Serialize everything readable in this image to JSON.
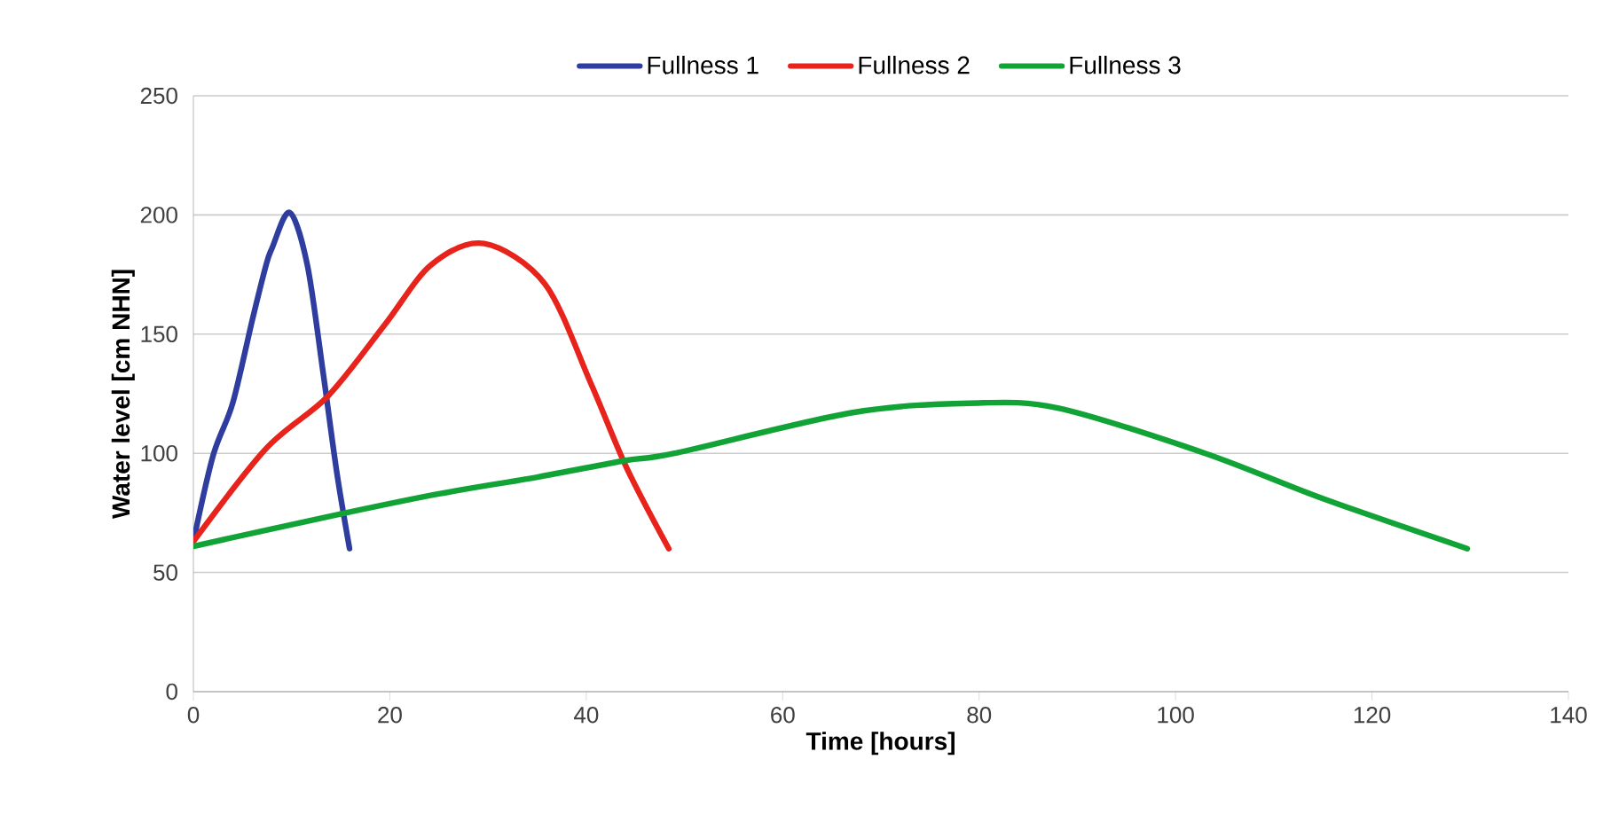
{
  "chart_data": {
    "type": "line",
    "xlabel": "Time [hours]",
    "ylabel": "Water level [cm NHN]",
    "xlim": [
      0,
      140
    ],
    "ylim": [
      0,
      250
    ],
    "xticks": [
      0,
      20,
      40,
      60,
      80,
      100,
      120,
      140
    ],
    "yticks": [
      0,
      50,
      100,
      150,
      200,
      250
    ],
    "grid": "y",
    "legend": "top",
    "marker": "none",
    "line_style": "solid",
    "series": [
      {
        "name": "Fullness 1",
        "color": "#2e3d9e",
        "x": [
          0,
          2,
          4,
          6,
          7.4,
          8,
          9.8,
          11.6,
          13.2,
          14.6,
          15.9
        ],
        "values": [
          63,
          99,
          121,
          156,
          179,
          186,
          201,
          179,
          134,
          92,
          60
        ]
      },
      {
        "name": "Fullness 2",
        "color": "#e8231c",
        "x": [
          0,
          7.4,
          13.7,
          19.5,
          24.2,
          29.6,
          35.8,
          40.5,
          44.1,
          48.4
        ],
        "values": [
          63,
          102,
          124,
          154,
          179,
          188,
          171,
          129,
          94,
          60
        ]
      },
      {
        "name": "Fullness 3",
        "color": "#12a337",
        "x": [
          0,
          15.5,
          25,
          35,
          44,
          49,
          67,
          79,
          88,
          103,
          115,
          129.7
        ],
        "values": [
          61,
          75,
          83,
          90,
          97,
          100,
          117,
          121,
          119,
          100,
          81,
          60
        ]
      }
    ]
  }
}
